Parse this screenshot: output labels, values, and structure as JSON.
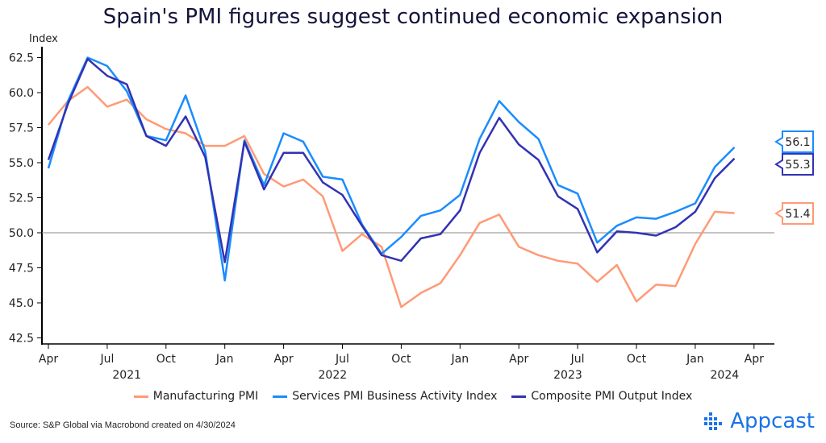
{
  "chart_data": {
    "type": "line",
    "title": "Spain's PMI figures suggest continued economic expansion",
    "ylabel": "Index",
    "xlabel": "",
    "ylim": [
      42.5,
      62.5
    ],
    "yticks": [
      "62.5",
      "60.0",
      "57.5",
      "55.0",
      "52.5",
      "50.0",
      "47.5",
      "45.0",
      "42.5"
    ],
    "reference_line": 50,
    "x_start": "2021-04",
    "x_ticks": [
      "Apr",
      "Jul",
      "Oct",
      "Jan",
      "Apr",
      "Jul",
      "Oct",
      "Jan",
      "Apr",
      "Jul",
      "Oct",
      "Jan",
      "Apr"
    ],
    "years": [
      "2021",
      "2022",
      "2023",
      "2024"
    ],
    "x": [
      "2021-04",
      "2021-05",
      "2021-06",
      "2021-07",
      "2021-08",
      "2021-09",
      "2021-10",
      "2021-11",
      "2021-12",
      "2022-01",
      "2022-02",
      "2022-03",
      "2022-04",
      "2022-05",
      "2022-06",
      "2022-07",
      "2022-08",
      "2022-09",
      "2022-10",
      "2022-11",
      "2022-12",
      "2023-01",
      "2023-02",
      "2023-03",
      "2023-04",
      "2023-05",
      "2023-06",
      "2023-07",
      "2023-08",
      "2023-09",
      "2023-10",
      "2023-11",
      "2023-12",
      "2024-01",
      "2024-02",
      "2024-03"
    ],
    "series": [
      {
        "name": "Manufacturing PMI",
        "color": "#ff9a76",
        "last_label": "51.4",
        "values": [
          57.7,
          59.4,
          60.4,
          59.0,
          59.5,
          58.1,
          57.4,
          57.1,
          56.2,
          56.2,
          56.9,
          54.2,
          53.3,
          53.8,
          52.6,
          48.7,
          49.9,
          49.0,
          44.7,
          45.7,
          46.4,
          48.4,
          50.7,
          51.3,
          49.0,
          48.4,
          48.0,
          47.8,
          46.5,
          47.7,
          45.1,
          46.3,
          46.2,
          49.2,
          51.5,
          51.4
        ]
      },
      {
        "name": "Services PMI Business Activity Index",
        "color": "#1a8cff",
        "last_label": "56.1",
        "values": [
          54.6,
          59.4,
          62.5,
          61.9,
          60.1,
          56.9,
          56.6,
          59.8,
          55.8,
          46.6,
          56.6,
          53.4,
          57.1,
          56.5,
          54.0,
          53.8,
          50.6,
          48.5,
          49.7,
          51.2,
          51.6,
          52.7,
          56.7,
          59.4,
          57.9,
          56.7,
          53.4,
          52.8,
          49.3,
          50.5,
          51.1,
          51.0,
          51.5,
          52.1,
          54.7,
          56.1
        ]
      },
      {
        "name": "Composite PMI Output Index",
        "color": "#3232b4",
        "last_label": "55.3",
        "values": [
          55.2,
          59.2,
          62.4,
          61.2,
          60.6,
          56.9,
          56.2,
          58.3,
          55.4,
          47.9,
          56.5,
          53.1,
          55.7,
          55.7,
          53.6,
          52.7,
          50.5,
          48.4,
          48.0,
          49.6,
          49.9,
          51.6,
          55.7,
          58.2,
          56.3,
          55.2,
          52.6,
          51.7,
          48.6,
          50.1,
          50.0,
          49.8,
          50.4,
          51.5,
          53.9,
          55.3
        ]
      }
    ],
    "legend_position": "bottom"
  },
  "source": "Source: S&P Global via Macrobond created on 4/30/2024",
  "brand": "Appcast"
}
